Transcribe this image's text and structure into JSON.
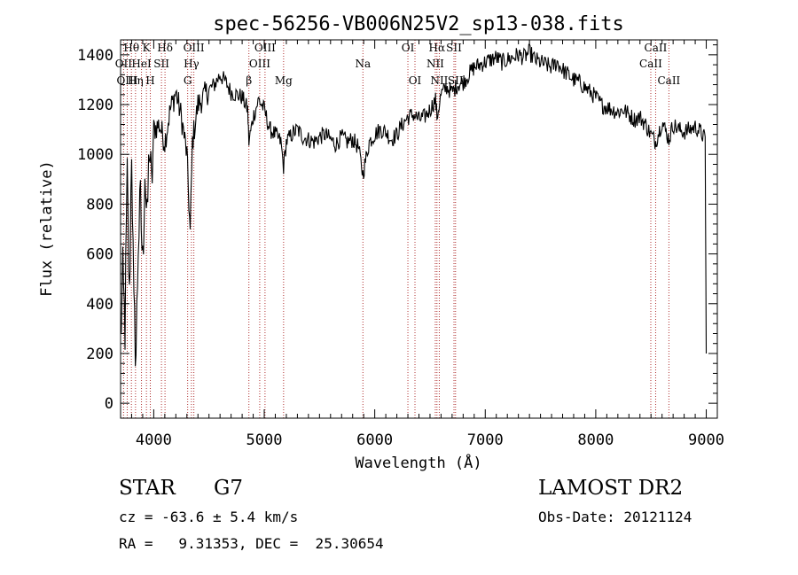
{
  "chart_data": {
    "type": "line",
    "title": "spec-56256-VB006N25V2_sp13-038.fits",
    "xlabel": "Wavelength (Å)",
    "ylabel": "Flux (relative)",
    "xlim": [
      3700,
      9100
    ],
    "ylim": [
      -60,
      1460
    ],
    "xticks": [
      4000,
      5000,
      6000,
      7000,
      8000,
      9000
    ],
    "yticks": [
      0,
      200,
      400,
      600,
      800,
      1000,
      1200,
      1400
    ],
    "line_color": "#000000",
    "marker_color": "#b03030",
    "spectrum": {
      "x": [
        3700,
        3720,
        3740,
        3760,
        3780,
        3800,
        3820,
        3840,
        3860,
        3880,
        3900,
        3920,
        3940,
        3960,
        3980,
        4000,
        4050,
        4100,
        4150,
        4200,
        4250,
        4300,
        4330,
        4350,
        4400,
        4450,
        4500,
        4550,
        4600,
        4650,
        4700,
        4750,
        4800,
        4850,
        4861,
        4900,
        4950,
        5000,
        5050,
        5100,
        5150,
        5175,
        5200,
        5250,
        5300,
        5350,
        5400,
        5450,
        5500,
        5550,
        5600,
        5650,
        5700,
        5750,
        5800,
        5850,
        5893,
        5950,
        6000,
        6050,
        6100,
        6150,
        6200,
        6250,
        6300,
        6350,
        6400,
        6450,
        6500,
        6550,
        6563,
        6600,
        6650,
        6700,
        6750,
        6800,
        6850,
        6900,
        6950,
        7000,
        7050,
        7100,
        7150,
        7200,
        7250,
        7300,
        7350,
        7400,
        7450,
        7500,
        7550,
        7600,
        7650,
        7700,
        7750,
        7800,
        7850,
        7900,
        7950,
        8000,
        8050,
        8100,
        8150,
        8200,
        8250,
        8300,
        8350,
        8400,
        8450,
        8498,
        8542,
        8600,
        8662,
        8700,
        8750,
        8800,
        8850,
        8900,
        8950,
        8990,
        9000
      ],
      "y": [
        250,
        500,
        300,
        900,
        400,
        1050,
        350,
        200,
        650,
        800,
        550,
        950,
        700,
        1050,
        850,
        1100,
        1120,
        1050,
        1180,
        1250,
        1150,
        1000,
        680,
        1050,
        1200,
        1230,
        1260,
        1280,
        1320,
        1290,
        1250,
        1240,
        1230,
        1180,
        1050,
        1150,
        1220,
        1180,
        1100,
        1080,
        1050,
        950,
        1050,
        1080,
        1100,
        1070,
        1060,
        1050,
        1070,
        1080,
        1060,
        1040,
        1070,
        1050,
        1060,
        1030,
        920,
        1050,
        1080,
        1100,
        1090,
        1060,
        1080,
        1120,
        1150,
        1160,
        1140,
        1150,
        1180,
        1220,
        1150,
        1240,
        1270,
        1250,
        1280,
        1290,
        1320,
        1350,
        1360,
        1370,
        1380,
        1390,
        1370,
        1380,
        1390,
        1400,
        1390,
        1410,
        1380,
        1370,
        1360,
        1350,
        1370,
        1340,
        1320,
        1300,
        1290,
        1270,
        1250,
        1230,
        1200,
        1190,
        1180,
        1170,
        1180,
        1160,
        1140,
        1150,
        1120,
        1080,
        1050,
        1130,
        1060,
        1120,
        1100,
        1090,
        1100,
        1110,
        1090,
        1060,
        200
      ]
    },
    "line_markers": [
      {
        "label": "Hθ",
        "x": 3798,
        "row": 0
      },
      {
        "label": "OII",
        "x": 3727,
        "row": 1
      },
      {
        "label": "OIII",
        "x": 3760,
        "row": 2
      },
      {
        "label": "K",
        "x": 3934,
        "row": 0
      },
      {
        "label": "HeI",
        "x": 3889,
        "row": 1
      },
      {
        "label": "Hη",
        "x": 3835,
        "row": 2
      },
      {
        "label": "SII",
        "x": 4070,
        "row": 1
      },
      {
        "label": "H",
        "x": 3969,
        "row": 2
      },
      {
        "label": "Hδ",
        "x": 4102,
        "row": 0
      },
      {
        "label": "OIII",
        "x": 4363,
        "row": 0
      },
      {
        "label": "Hγ",
        "x": 4341,
        "row": 1
      },
      {
        "label": "G",
        "x": 4307,
        "row": 2
      },
      {
        "label": "OIII",
        "x": 5007,
        "row": 0
      },
      {
        "label": "OIII",
        "x": 4959,
        "row": 1
      },
      {
        "label": "β",
        "x": 4861,
        "row": 2
      },
      {
        "label": "Mg",
        "x": 5175,
        "row": 2
      },
      {
        "label": "Na",
        "x": 5893,
        "row": 1
      },
      {
        "label": "OI",
        "x": 6300,
        "row": 0
      },
      {
        "label": "OI",
        "x": 6364,
        "row": 2
      },
      {
        "label": "Hα",
        "x": 6563,
        "row": 0
      },
      {
        "label": "SII",
        "x": 6717,
        "row": 0
      },
      {
        "label": "NII",
        "x": 6548,
        "row": 1
      },
      {
        "label": "NII",
        "x": 6584,
        "row": 2
      },
      {
        "label": "SII",
        "x": 6731,
        "row": 2
      },
      {
        "label": "CaII",
        "x": 8542,
        "row": 0
      },
      {
        "label": "CaII",
        "x": 8498,
        "row": 1
      },
      {
        "label": "CaII",
        "x": 8662,
        "row": 2
      }
    ]
  },
  "info": {
    "object_class": "STAR",
    "subclass": "G7",
    "survey": "LAMOST DR2",
    "cz": "cz = -63.6 ± 5.4 km/s",
    "obs_date": "Obs-Date: 20121124",
    "coords": "RA =   9.31353, DEC =  25.30654"
  }
}
